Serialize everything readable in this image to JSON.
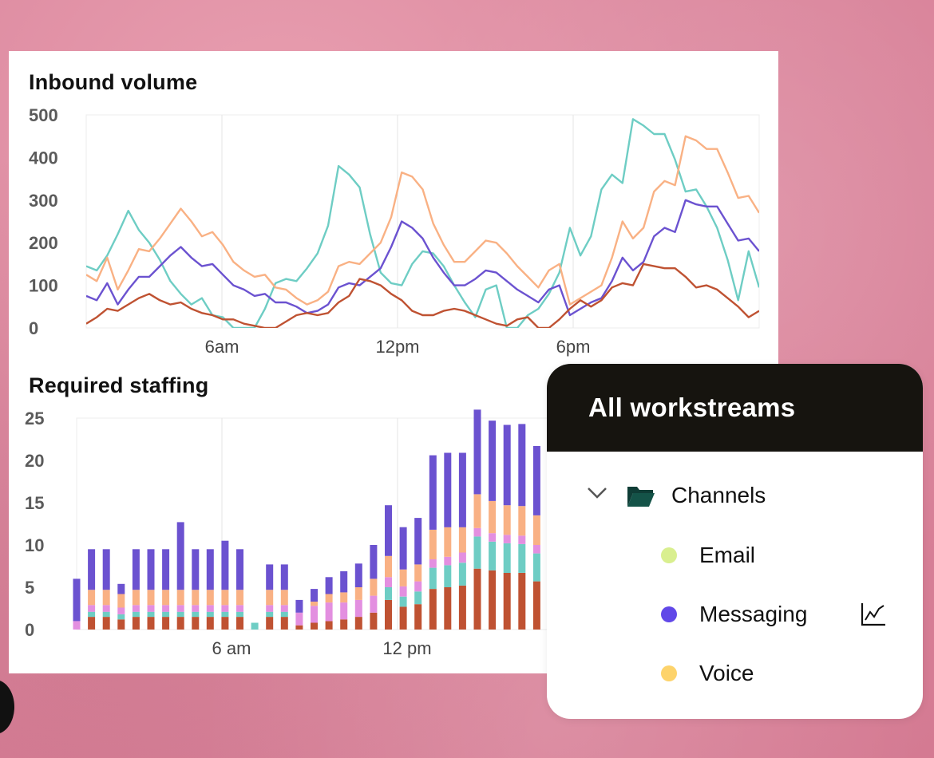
{
  "inbound": {
    "title": "Inbound volume",
    "y_ticks": [
      "500",
      "400",
      "300",
      "200",
      "100",
      "0"
    ],
    "x_ticks": [
      "6am",
      "12pm",
      "6pm"
    ]
  },
  "staffing": {
    "title": "Required staffing",
    "y_ticks": [
      "25",
      "20",
      "15",
      "10",
      "5",
      "0"
    ],
    "x_ticks": [
      "6 am",
      "12 pm"
    ]
  },
  "workstreams": {
    "header": "All workstreams",
    "group_label": "Channels",
    "items": [
      {
        "label": "Email",
        "color": "#d9ef8f"
      },
      {
        "label": "Messaging",
        "color": "#6148e8"
      },
      {
        "label": "Voice",
        "color": "#fdd36b"
      }
    ]
  },
  "colors": {
    "teal": "#6ecdc4",
    "orange": "#f9b184",
    "purple": "#6b52d0",
    "rust": "#bf5232",
    "pink": "#e38fe0"
  },
  "chart_data": [
    {
      "type": "line",
      "title": "Inbound volume",
      "x_ticks": [
        "6am",
        "12pm",
        "6pm"
      ],
      "ylim": [
        0,
        500
      ],
      "y_ticks": [
        0,
        100,
        200,
        300,
        400,
        500
      ],
      "grid": "vertical",
      "series": [
        {
          "color": "#6ecdc4",
          "values": [
            145,
            135,
            170,
            220,
            275,
            230,
            200,
            160,
            110,
            80,
            55,
            70,
            30,
            25,
            0,
            0,
            0,
            45,
            105,
            115,
            110,
            140,
            175,
            240,
            380,
            360,
            330,
            220,
            130,
            105,
            100,
            150,
            180,
            175,
            145,
            100,
            60,
            25,
            90,
            100,
            0,
            0,
            30,
            45,
            80,
            130,
            235,
            170,
            215,
            325,
            360,
            340,
            490,
            475,
            455,
            455,
            395,
            320,
            325,
            285,
            235,
            160,
            65,
            180,
            95
          ]
        },
        {
          "color": "#f9b184",
          "values": [
            125,
            110,
            165,
            90,
            135,
            185,
            180,
            210,
            245,
            280,
            250,
            215,
            225,
            195,
            155,
            135,
            120,
            125,
            95,
            90,
            70,
            55,
            65,
            85,
            145,
            155,
            150,
            175,
            200,
            260,
            365,
            355,
            325,
            245,
            195,
            155,
            155,
            180,
            205,
            200,
            175,
            145,
            120,
            95,
            135,
            150,
            55,
            70,
            85,
            100,
            165,
            250,
            210,
            235,
            320,
            345,
            335,
            450,
            440,
            420,
            420,
            365,
            305,
            310,
            270
          ]
        },
        {
          "color": "#6b52d0",
          "values": [
            75,
            65,
            105,
            55,
            90,
            120,
            120,
            145,
            170,
            190,
            165,
            145,
            150,
            125,
            100,
            90,
            75,
            80,
            60,
            60,
            50,
            35,
            40,
            55,
            95,
            105,
            100,
            120,
            140,
            190,
            250,
            235,
            210,
            165,
            130,
            100,
            100,
            115,
            135,
            130,
            110,
            90,
            75,
            60,
            90,
            100,
            30,
            45,
            60,
            70,
            110,
            165,
            135,
            155,
            215,
            235,
            225,
            300,
            290,
            285,
            285,
            245,
            205,
            210,
            180
          ]
        },
        {
          "color": "#bf5232",
          "values": [
            10,
            25,
            45,
            40,
            55,
            70,
            80,
            65,
            55,
            60,
            45,
            35,
            30,
            20,
            20,
            10,
            5,
            0,
            0,
            15,
            30,
            35,
            30,
            35,
            60,
            75,
            115,
            110,
            100,
            80,
            65,
            40,
            30,
            30,
            40,
            45,
            40,
            30,
            20,
            10,
            5,
            20,
            25,
            0,
            0,
            20,
            45,
            65,
            50,
            65,
            95,
            105,
            100,
            150,
            145,
            140,
            140,
            120,
            95,
            100,
            90,
            70,
            50,
            25,
            40
          ]
        }
      ]
    },
    {
      "type": "bar",
      "title": "Required staffing",
      "stacked": true,
      "x_ticks": [
        "6 am",
        "12 pm"
      ],
      "ylim": [
        0,
        25
      ],
      "y_ticks": [
        0,
        5,
        10,
        15,
        20,
        25
      ],
      "grid": "vertical",
      "series": [
        {
          "color": "#bf5232",
          "values": [
            0,
            1.5,
            1.5,
            1.2,
            1.5,
            1.5,
            1.5,
            1.5,
            1.5,
            1.5,
            1.5,
            1.5,
            0,
            1.5,
            1.5,
            0.5,
            0.8,
            1.0,
            1.2,
            1.5,
            2.0,
            3.5,
            2.7,
            3.0,
            4.8,
            5.0,
            5.2,
            7.2,
            7.0,
            6.7,
            6.7,
            5.7,
            4.6
          ]
        },
        {
          "color": "#6ecdc4",
          "values": [
            0,
            0.6,
            0.6,
            0.6,
            0.6,
            0.6,
            0.6,
            0.6,
            0.6,
            0.6,
            0.6,
            0.6,
            0.8,
            0.6,
            0.6,
            0,
            0,
            0,
            0,
            0,
            0,
            1.5,
            1.2,
            1.5,
            2.5,
            2.6,
            2.7,
            3.8,
            3.4,
            3.5,
            3.4,
            3.3,
            2.2
          ]
        },
        {
          "color": "#e38fe0",
          "values": [
            1.0,
            0.8,
            0.8,
            0.8,
            0.8,
            0.8,
            0.8,
            0.8,
            0.8,
            0.8,
            0.8,
            0.8,
            0,
            0.8,
            0.8,
            1.5,
            2.0,
            2.2,
            2.0,
            2.0,
            2.0,
            1.2,
            1.2,
            1.2,
            1.0,
            1.0,
            1.2,
            1.0,
            1.0,
            1.0,
            1.0,
            1.0,
            1.0
          ]
        },
        {
          "color": "#f9b184",
          "values": [
            0,
            1.8,
            1.8,
            1.6,
            1.8,
            1.8,
            1.8,
            1.8,
            1.8,
            1.8,
            1.8,
            1.8,
            0,
            1.8,
            1.8,
            0,
            0.5,
            1.0,
            1.2,
            1.5,
            2.0,
            2.5,
            2.0,
            2.0,
            3.5,
            3.5,
            3.0,
            4.0,
            3.8,
            3.5,
            3.5,
            3.5,
            3.5
          ]
        },
        {
          "color": "#6b52d0",
          "values": [
            5.0,
            4.8,
            4.8,
            1.2,
            4.8,
            4.8,
            4.8,
            8.0,
            4.8,
            4.8,
            5.8,
            4.8,
            0,
            3.0,
            3.0,
            1.5,
            1.5,
            2.0,
            2.5,
            2.8,
            4.0,
            6.0,
            5.0,
            5.5,
            8.8,
            8.8,
            8.8,
            10.0,
            9.5,
            9.5,
            9.7,
            8.2,
            7.0
          ]
        }
      ]
    }
  ]
}
